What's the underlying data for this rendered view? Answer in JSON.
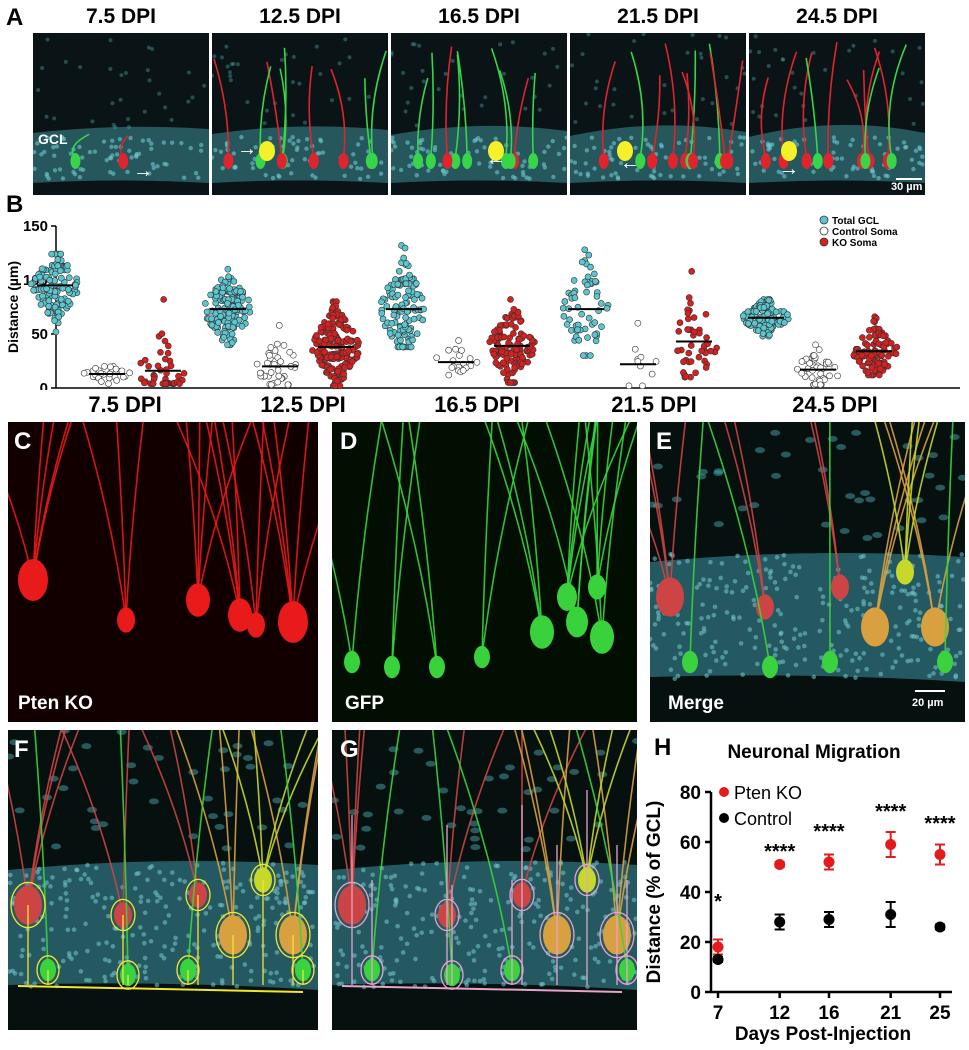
{
  "panel_labels": {
    "A": "A",
    "B": "B",
    "C": "C",
    "D": "D",
    "E": "E",
    "F": "F",
    "G": "G",
    "H": "H"
  },
  "panel_a": {
    "timepoints": [
      "7.5 DPI",
      "12.5 DPI",
      "16.5 DPI",
      "21.5 DPI",
      "24.5 DPI"
    ],
    "gcl_label": "GCL",
    "scale_bar": "30 µm"
  },
  "panel_c": {
    "label": "Pten KO"
  },
  "panel_d": {
    "label": "GFP"
  },
  "panel_e": {
    "label": "Merge",
    "scale_bar": "20 µm"
  },
  "colors": {
    "total_gcl": "#5bc6cf",
    "control": "#ffffff",
    "ko": "#d62020",
    "pten_point": "#e41a1c",
    "control_point": "#000000"
  },
  "chart_data": [
    {
      "type": "scatter",
      "panel": "B",
      "ylabel": "Distance (µm)",
      "ylim": [
        0,
        150
      ],
      "yticks": [
        0,
        50,
        100,
        150
      ],
      "categories": [
        "7.5 DPI",
        "12.5 DPI",
        "16.5 DPI",
        "21.5 DPI",
        "24.5 DPI"
      ],
      "legend": [
        "Total GCL",
        "Control Soma",
        "KO Soma"
      ],
      "legend_position": "top-right",
      "series": [
        {
          "name": "Total GCL",
          "mean": [
            95,
            73,
            73,
            73,
            65
          ],
          "range": [
            [
              52,
              124
            ],
            [
              40,
              110
            ],
            [
              38,
              132
            ],
            [
              30,
              128
            ],
            [
              48,
              82
            ]
          ],
          "n": [
            120,
            150,
            120,
            60,
            110
          ]
        },
        {
          "name": "Control Soma",
          "mean": [
            13,
            20,
            24,
            22,
            17
          ],
          "range": [
            [
              4,
              20
            ],
            [
              3,
              58
            ],
            [
              12,
              44
            ],
            [
              2,
              60
            ],
            [
              3,
              40
            ]
          ],
          "n": [
            30,
            40,
            20,
            10,
            40
          ]
        },
        {
          "name": "KO Soma",
          "mean": [
            16,
            38,
            39,
            43,
            34
          ],
          "range": [
            [
              4,
              82
            ],
            [
              2,
              80
            ],
            [
              5,
              82
            ],
            [
              10,
              108
            ],
            [
              12,
              66
            ]
          ],
          "n": [
            45,
            180,
            120,
            45,
            100
          ]
        }
      ]
    },
    {
      "type": "scatter",
      "panel": "H",
      "title": "Neuronal Migration",
      "xlabel": "Days Post-Injection",
      "ylabel": "Distance (% of GCL)",
      "x": [
        7,
        12,
        16,
        21,
        25
      ],
      "ylim": [
        0,
        80
      ],
      "yticks": [
        0,
        20,
        40,
        60,
        80
      ],
      "legend_position": "top-left",
      "series": [
        {
          "name": "Pten KO",
          "values": [
            18,
            51,
            52,
            59,
            55
          ],
          "err": [
            3,
            1,
            3,
            5,
            4
          ]
        },
        {
          "name": "Control",
          "values": [
            13,
            28,
            29,
            31,
            26
          ],
          "err": [
            1,
            3,
            3,
            5,
            1
          ]
        }
      ],
      "annotations": [
        "*",
        "****",
        "****",
        "****",
        "****"
      ]
    }
  ]
}
